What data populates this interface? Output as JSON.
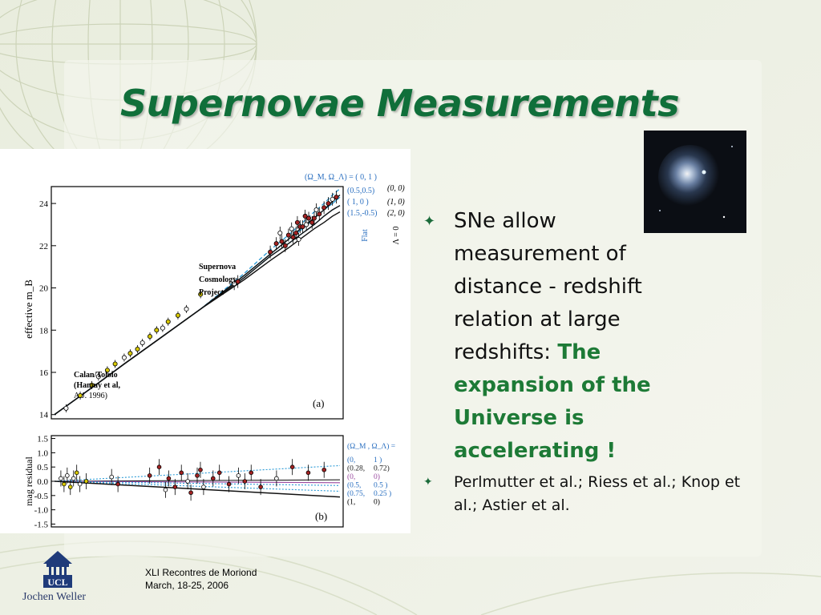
{
  "slide": {
    "title": "Supernovae Measurements",
    "bullets": [
      {
        "text": "SNe allow measurement of distance - redshift relation at large redshifts: ",
        "highlight": "The expansion of the Universe is accelerating !"
      },
      {
        "text": "Perlmutter et al.; Riess et al.; Knop et al.; Astier et al."
      }
    ],
    "footer": {
      "line1": "XLI Recontres de Moriond",
      "line2": "March, 18-25, 2006"
    },
    "logo": {
      "text": "UCL"
    },
    "author": "Jochen Weller",
    "colors": {
      "title": "#106f3a",
      "highlight": "#1d7a36",
      "background": "#eef1e6"
    }
  },
  "chart_data": [
    {
      "type": "line",
      "panel_label": "(a)",
      "ylabel": "effective  m_B",
      "yticks": [
        "14",
        "16",
        "18",
        "20",
        "22",
        "24"
      ],
      "ylim": [
        13.8,
        24.8
      ],
      "annotations": [
        "Supernova",
        "Cosmology",
        "Project",
        "Calan/Tololo",
        "(Hamuy et al,",
        "A.J. 1996)"
      ],
      "legend": {
        "header": "(Ω_M, Ω_Λ) = ( 0,   1 )",
        "blue": [
          "(0.5,0.5)",
          "( 1,    0 )",
          "(1.5,-0.5)"
        ],
        "black": [
          "(0, 0)",
          "(1, 0)",
          "(2, 0)"
        ],
        "side_blue": "Flat",
        "side_black": "Λ = 0"
      },
      "x": [
        0.01,
        0.02,
        0.03,
        0.05,
        0.1,
        0.2,
        0.3,
        0.4,
        0.5,
        0.6,
        0.7,
        0.8,
        0.9
      ],
      "series": [
        {
          "name": "( 0,   1 )",
          "color": "#2a9ad6",
          "dash": "dash",
          "values": [
            14.0,
            15.5,
            16.4,
            17.5,
            19.0,
            20.7,
            21.8,
            22.5,
            23.1,
            23.6,
            24.0,
            24.4,
            24.7
          ]
        },
        {
          "name": "(0.5,0.5)",
          "color": "#2a9ad6",
          "dash": "solid",
          "values": [
            14.0,
            15.5,
            16.4,
            17.5,
            19.0,
            20.6,
            21.6,
            22.3,
            22.8,
            23.3,
            23.7,
            24.0,
            24.3
          ]
        },
        {
          "name": "( 1,    0 )",
          "color": "#2a9ad6",
          "dash": "solid",
          "values": [
            14.0,
            15.5,
            16.4,
            17.5,
            19.0,
            20.5,
            21.5,
            22.1,
            22.6,
            23.0,
            23.4,
            23.7,
            23.9
          ]
        },
        {
          "name": "(0, 0)",
          "color": "#111111",
          "dash": "solid",
          "values": [
            14.0,
            15.5,
            16.4,
            17.5,
            19.0,
            20.6,
            21.6,
            22.3,
            22.9,
            23.3,
            23.7,
            24.1,
            24.4
          ]
        },
        {
          "name": "(1, 0)",
          "color": "#111111",
          "dash": "solid",
          "values": [
            14.0,
            15.5,
            16.4,
            17.5,
            19.0,
            20.5,
            21.5,
            22.1,
            22.6,
            23.0,
            23.4,
            23.7,
            23.9
          ]
        },
        {
          "name": "(2, 0)",
          "color": "#111111",
          "dash": "solid",
          "values": [
            14.0,
            15.5,
            16.4,
            17.5,
            19.0,
            20.4,
            21.3,
            21.9,
            22.4,
            22.8,
            23.1,
            23.4,
            23.6
          ]
        }
      ],
      "points_low_z": [
        [
          0.012,
          14.3
        ],
        [
          0.015,
          14.9
        ],
        [
          0.018,
          15.4
        ],
        [
          0.02,
          15.8
        ],
        [
          0.023,
          16.1
        ],
        [
          0.026,
          16.4
        ],
        [
          0.03,
          16.7
        ],
        [
          0.033,
          16.9
        ],
        [
          0.037,
          17.1
        ],
        [
          0.04,
          17.4
        ],
        [
          0.045,
          17.7
        ],
        [
          0.05,
          18.0
        ],
        [
          0.055,
          18.1
        ],
        [
          0.06,
          18.4
        ],
        [
          0.07,
          18.7
        ],
        [
          0.08,
          19.0
        ],
        [
          0.1,
          19.7
        ]
      ],
      "points_high_z": [
        [
          0.17,
          20.2
        ],
        [
          0.18,
          20.3
        ],
        [
          0.3,
          21.7
        ],
        [
          0.33,
          22.1
        ],
        [
          0.35,
          22.6
        ],
        [
          0.36,
          22.2
        ],
        [
          0.38,
          22.0
        ],
        [
          0.4,
          22.5
        ],
        [
          0.42,
          22.8
        ],
        [
          0.43,
          22.4
        ],
        [
          0.45,
          22.6
        ],
        [
          0.46,
          23.1
        ],
        [
          0.47,
          22.3
        ],
        [
          0.48,
          22.9
        ],
        [
          0.5,
          22.9
        ],
        [
          0.52,
          23.4
        ],
        [
          0.53,
          23.0
        ],
        [
          0.55,
          23.3
        ],
        [
          0.58,
          23.1
        ],
        [
          0.6,
          23.3
        ],
        [
          0.62,
          23.7
        ],
        [
          0.65,
          23.5
        ],
        [
          0.7,
          23.8
        ],
        [
          0.75,
          24.0
        ],
        [
          0.8,
          24.2
        ],
        [
          0.85,
          24.3
        ]
      ]
    },
    {
      "type": "scatter",
      "panel_label": "(b)",
      "ylabel": "mag residual",
      "yticks": [
        "1.5",
        "1.0",
        "0.5",
        "0.0",
        "-0.5",
        "-1.0",
        "-1.5"
      ],
      "ylim": [
        -1.6,
        1.6
      ],
      "legend": {
        "header": "(Ω_M , Ω_Λ) =",
        "rows": [
          [
            "(0,",
            "1 )"
          ],
          [
            "(0.28,",
            "0.72)"
          ],
          [
            "(0,",
            "0)"
          ],
          [
            "(0.5,",
            "0.5 )"
          ],
          [
            "(0.75,",
            "0.25 )"
          ],
          [
            "(1,",
            "0)"
          ]
        ]
      },
      "x": [
        0.0,
        0.9
      ],
      "series": [
        {
          "name": "(0,      1 )",
          "color": "#2a9ad6",
          "values": [
            0.0,
            0.55
          ]
        },
        {
          "name": "(0.28,   0.72)",
          "color": "#222222",
          "values": [
            0.0,
            0.05
          ]
        },
        {
          "name": "(0,      0)",
          "color": "#9a4aa0",
          "values": [
            0.0,
            -0.05
          ]
        },
        {
          "name": "(0.5,    0.5 )",
          "color": "#2a9ad6",
          "values": [
            0.0,
            -0.15
          ]
        },
        {
          "name": "(0.75,   0.25 )",
          "color": "#2a9ad6",
          "values": [
            0.0,
            -0.35
          ]
        },
        {
          "name": "(1,      0)",
          "color": "#111111",
          "values": [
            0.0,
            -0.55
          ]
        }
      ],
      "points": [
        [
          0.02,
          0.1
        ],
        [
          0.03,
          -0.1
        ],
        [
          0.04,
          0.2
        ],
        [
          0.05,
          -0.2
        ],
        [
          0.06,
          0.1
        ],
        [
          0.07,
          0.3
        ],
        [
          0.08,
          -0.1
        ],
        [
          0.1,
          0.0
        ],
        [
          0.18,
          0.15
        ],
        [
          0.2,
          -0.1
        ],
        [
          0.3,
          0.2
        ],
        [
          0.33,
          0.5
        ],
        [
          0.35,
          -0.3
        ],
        [
          0.36,
          0.1
        ],
        [
          0.38,
          -0.2
        ],
        [
          0.4,
          0.3
        ],
        [
          0.42,
          0.0
        ],
        [
          0.43,
          -0.4
        ],
        [
          0.45,
          0.2
        ],
        [
          0.46,
          0.4
        ],
        [
          0.47,
          -0.2
        ],
        [
          0.5,
          0.1
        ],
        [
          0.52,
          0.3
        ],
        [
          0.55,
          -0.1
        ],
        [
          0.58,
          0.2
        ],
        [
          0.6,
          0.0
        ],
        [
          0.62,
          0.3
        ],
        [
          0.65,
          -0.2
        ],
        [
          0.7,
          0.1
        ],
        [
          0.75,
          0.5
        ],
        [
          0.8,
          0.3
        ],
        [
          0.85,
          0.4
        ]
      ]
    }
  ]
}
